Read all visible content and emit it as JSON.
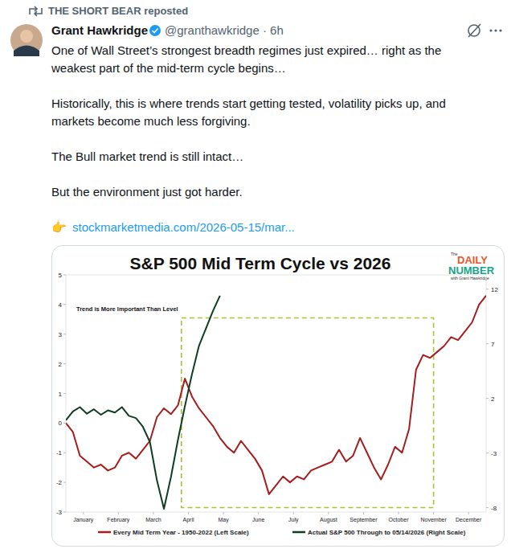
{
  "post": {
    "repost_label": "THE SHORT BEAR reposted",
    "author": "Grant Hawkridge",
    "handle": "@granthawkridge · 6h",
    "text": [
      [
        "One of Wall Street’s strongest breadth regimes just expired… right as the",
        "weakest part of the mid-term cycle begins…"
      ],
      [
        "Historically, this is where trends start getting tested, volatility picks up, and",
        "markets become much less forgiving."
      ],
      [
        "The Bull market trend is still intact…"
      ],
      [
        "But the environment just got harder."
      ]
    ],
    "link_icon": "👉",
    "link": "stockmarketmedia.com/2026-05-15/mar..."
  },
  "chart_data": {
    "type": "line",
    "title": "S&P 500 Mid Term Cycle vs 2026",
    "annotations": [
      "Trend is More Important Than Level"
    ],
    "logo": {
      "small": "The",
      "line1": "DAILY",
      "line2": "NUMBER",
      "byline": "with Grant Hawkridge"
    },
    "x": [
      0.0,
      0.2,
      0.4,
      0.6,
      0.8,
      1.0,
      1.2,
      1.4,
      1.6,
      1.8,
      2.0,
      2.2,
      2.4,
      2.6,
      2.8,
      3.0,
      3.2,
      3.4,
      3.6,
      3.8,
      4.0,
      4.2,
      4.4,
      4.6,
      4.8,
      5.0,
      5.2,
      5.4,
      5.6,
      5.8,
      6.0,
      6.2,
      6.4,
      6.6,
      6.8,
      7.0,
      7.2,
      7.4,
      7.6,
      7.8,
      8.0,
      8.2,
      8.4,
      8.6,
      8.8,
      9.0,
      9.2,
      9.4,
      9.6,
      9.8,
      10.0,
      10.2,
      10.4,
      10.6,
      10.8,
      11.0,
      11.2,
      11.4,
      11.6,
      11.8,
      12.0
    ],
    "xlim": [
      0,
      12
    ],
    "xticks": [
      {
        "value": 0.5,
        "label": "January"
      },
      {
        "value": 1.5,
        "label": "February"
      },
      {
        "value": 2.5,
        "label": "March"
      },
      {
        "value": 3.5,
        "label": "April"
      },
      {
        "value": 4.5,
        "label": "May"
      },
      {
        "value": 5.5,
        "label": "June"
      },
      {
        "value": 6.5,
        "label": "July"
      },
      {
        "value": 7.5,
        "label": "August"
      },
      {
        "value": 8.5,
        "label": "September"
      },
      {
        "value": 9.5,
        "label": "October"
      },
      {
        "value": 10.5,
        "label": "November"
      },
      {
        "value": 11.5,
        "label": "December"
      }
    ],
    "ylim": [
      -3,
      5
    ],
    "yticks": [
      -3,
      -2,
      -1,
      0,
      1,
      2,
      3,
      4,
      5
    ],
    "y2lim": [
      -8.4,
      13.3
    ],
    "y2ticks": [
      -8,
      -3,
      2,
      7,
      12
    ],
    "grid": false,
    "legend": "bottom",
    "highlight": {
      "x": [
        3.3,
        10.5
      ],
      "y": [
        -2.85,
        3.55
      ],
      "color": "#a8c23a",
      "line_style": "dashed"
    },
    "series": [
      {
        "name": "Every Mid Term Year - 1950-2022 (Left Scale)",
        "color": "#a51d1d",
        "line_style": "solid",
        "values": [
          0,
          -0.3,
          -1.1,
          -1.3,
          -1.5,
          -1.4,
          -1.6,
          -1.5,
          -1.1,
          -1.0,
          -1.2,
          -0.9,
          -0.6,
          0.2,
          0.5,
          0.3,
          0.6,
          1.5,
          0.9,
          0.5,
          0.2,
          -0.1,
          -0.5,
          -0.8,
          -1.0,
          -0.6,
          -0.9,
          -1.2,
          -1.6,
          -2.4,
          -2.1,
          -1.8,
          -2.0,
          -1.8,
          -1.9,
          -1.6,
          -1.5,
          -1.4,
          -1.3,
          -0.9,
          -1.3,
          -1.1,
          -0.5,
          -1.0,
          -1.5,
          -1.9,
          -1.4,
          -0.8,
          -1.0,
          -0.2,
          1.8,
          2.3,
          2.2,
          2.4,
          2.6,
          2.9,
          2.8,
          3.1,
          3.4,
          4.0,
          4.3
        ]
      },
      {
        "name": "Actual S&P 500 Through to 05/14/2026 (Right Scale)",
        "color": "#0f3d22",
        "line_style": "solid",
        "axis": "y2",
        "values": [
          0,
          0.8,
          1.2,
          0.6,
          1.0,
          0.5,
          0.9,
          0.7,
          1.2,
          0.4,
          0.2,
          -0.6,
          -2.0,
          -5.5,
          -8.1,
          -5.2,
          -1.8,
          1.3,
          4.2,
          6.8,
          8.4,
          10.0,
          11.4,
          null,
          null,
          null,
          null,
          null,
          null,
          null,
          null,
          null,
          null,
          null,
          null,
          null,
          null,
          null,
          null,
          null,
          null,
          null,
          null,
          null,
          null,
          null,
          null,
          null,
          null,
          null,
          null,
          null,
          null,
          null,
          null,
          null,
          null,
          null,
          null,
          null,
          null
        ]
      }
    ]
  }
}
